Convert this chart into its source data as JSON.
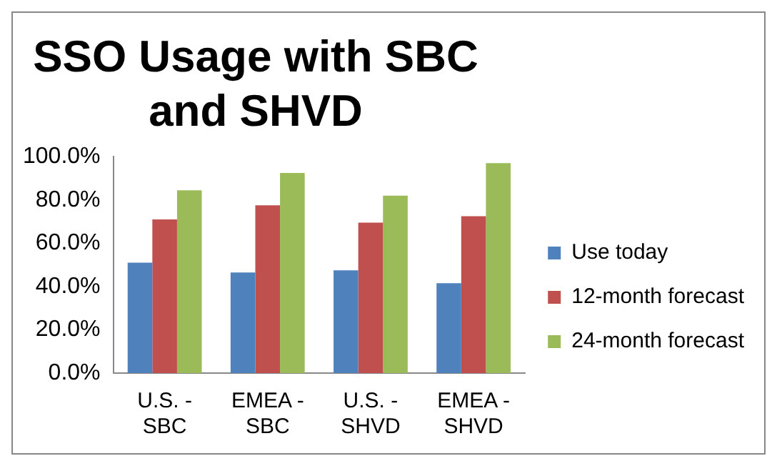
{
  "chart_data": {
    "type": "bar",
    "title": "SSO Usage with SBC and SHVD",
    "categories": [
      "U.S. - SBC",
      "EMEA - SBC",
      "U.S. - SHVD",
      "EMEA - SHVD"
    ],
    "series": [
      {
        "name": "Use today",
        "color": "#4f81bd",
        "values": [
          51,
          46.5,
          47.5,
          41.5
        ]
      },
      {
        "name": "12-month forecast",
        "color": "#c0504d",
        "values": [
          71,
          77.5,
          69.5,
          72.5
        ]
      },
      {
        "name": "24-month forecast",
        "color": "#9bbb59",
        "values": [
          84.5,
          92.5,
          82,
          97
        ]
      }
    ],
    "ylim": [
      0,
      100
    ],
    "yticks": [
      {
        "value": 0,
        "label": "0.0%"
      },
      {
        "value": 20,
        "label": "20.0%"
      },
      {
        "value": 40,
        "label": "40.0%"
      },
      {
        "value": 60,
        "label": "60.0%"
      },
      {
        "value": 80,
        "label": "80.0%"
      },
      {
        "value": 100,
        "label": "100.0%"
      }
    ],
    "grid": false,
    "legend": "right"
  }
}
